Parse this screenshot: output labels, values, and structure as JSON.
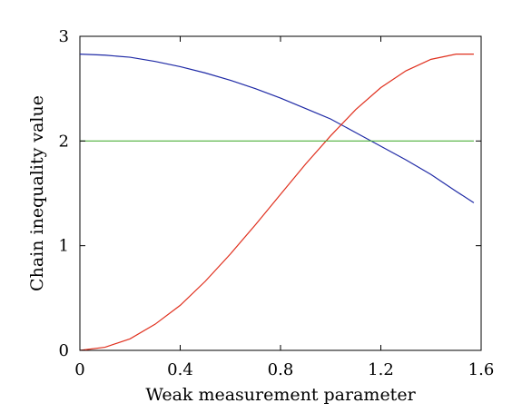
{
  "chart_data": {
    "type": "line",
    "xlabel": "Weak measurement parameter",
    "ylabel": "Chain inequality value",
    "xlim": [
      0,
      1.6
    ],
    "ylim": [
      0,
      3
    ],
    "xticks": [
      0,
      0.4,
      0.8,
      1.2,
      1.6
    ],
    "xtick_labels": [
      "0",
      "0.4",
      "0.8",
      "1.2",
      "1.6"
    ],
    "yticks": [
      0,
      1,
      2,
      3
    ],
    "ytick_labels": [
      "0",
      "1",
      "2",
      "3"
    ],
    "grid": false,
    "series": [
      {
        "color": "#1f2aa6",
        "x": [
          0,
          0.1,
          0.2,
          0.3,
          0.4,
          0.5,
          0.6,
          0.7,
          0.8,
          0.9,
          1.0,
          1.1,
          1.2,
          1.3,
          1.4,
          1.5,
          1.5708
        ],
        "y": [
          2.83,
          2.82,
          2.8,
          2.76,
          2.71,
          2.65,
          2.58,
          2.5,
          2.41,
          2.31,
          2.21,
          2.08,
          1.95,
          1.82,
          1.68,
          1.52,
          1.41
        ]
      },
      {
        "color": "#e0301e",
        "x": [
          0,
          0.1,
          0.2,
          0.3,
          0.4,
          0.5,
          0.6,
          0.7,
          0.8,
          0.9,
          1.0,
          1.1,
          1.2,
          1.3,
          1.4,
          1.5,
          1.5708
        ],
        "y": [
          0.0,
          0.03,
          0.11,
          0.25,
          0.43,
          0.66,
          0.92,
          1.2,
          1.49,
          1.78,
          2.05,
          2.3,
          2.51,
          2.67,
          2.78,
          2.83,
          2.83
        ]
      },
      {
        "color": "#4caf3a",
        "x": [
          0,
          1.5708
        ],
        "y": [
          2.0,
          2.0
        ]
      }
    ]
  }
}
